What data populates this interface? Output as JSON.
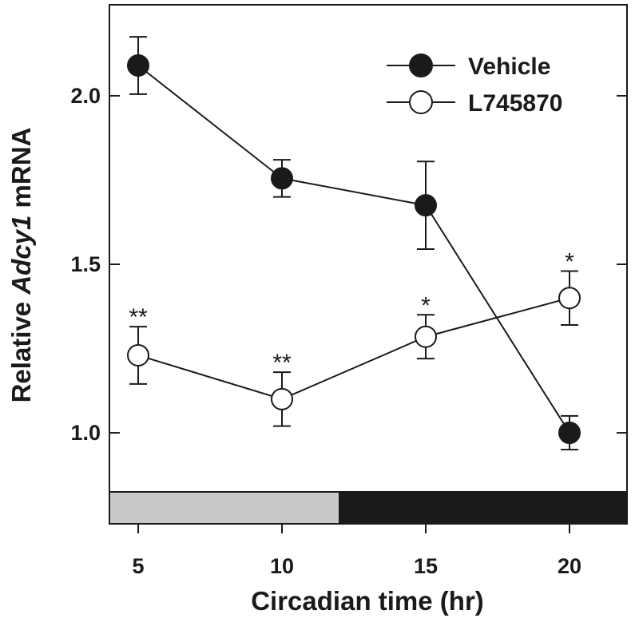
{
  "chart_data": {
    "type": "line",
    "xlabel": "Circadian time (hr)",
    "ylabel_prefix": "Relative ",
    "ylabel_italic": "Adcy1",
    "ylabel_suffix": " mRNA",
    "xlim": [
      4,
      22
    ],
    "ylim": [
      0.73,
      2.27
    ],
    "xticks": [
      5,
      10,
      15,
      20
    ],
    "xtick_labels": [
      "5",
      "10",
      "15",
      "20"
    ],
    "yticks": [
      1.0,
      1.5,
      2.0
    ],
    "ytick_labels": [
      "1.0",
      "1.5",
      "2.0"
    ],
    "grid": false,
    "legend_position": "top-right",
    "series": [
      {
        "name": "Vehicle",
        "marker": "filled-circle",
        "color": "#1a1a1a",
        "x": [
          5,
          10,
          15,
          20
        ],
        "y": [
          2.09,
          1.755,
          1.675,
          1.0
        ],
        "err": [
          0.085,
          0.055,
          0.13,
          0.05
        ]
      },
      {
        "name": "L745870",
        "marker": "open-circle",
        "color": "#1a1a1a",
        "x": [
          5,
          10,
          15,
          20
        ],
        "y": [
          1.23,
          1.1,
          1.285,
          1.4
        ],
        "err": [
          0.085,
          0.08,
          0.065,
          0.08
        ]
      }
    ],
    "annotations": [
      {
        "x": 5,
        "series": "L745870",
        "text": "**"
      },
      {
        "x": 10,
        "series": "L745870",
        "text": "**"
      },
      {
        "x": 15,
        "series": "L745870",
        "text": "*"
      },
      {
        "x": 20,
        "series": "L745870",
        "text": "*"
      }
    ],
    "light_dark_bar": {
      "light": {
        "x_start": 4,
        "x_end": 12,
        "color": "#c8c9cb"
      },
      "dark": {
        "x_start": 12,
        "x_end": 22,
        "color": "#1a1a1a"
      }
    }
  }
}
